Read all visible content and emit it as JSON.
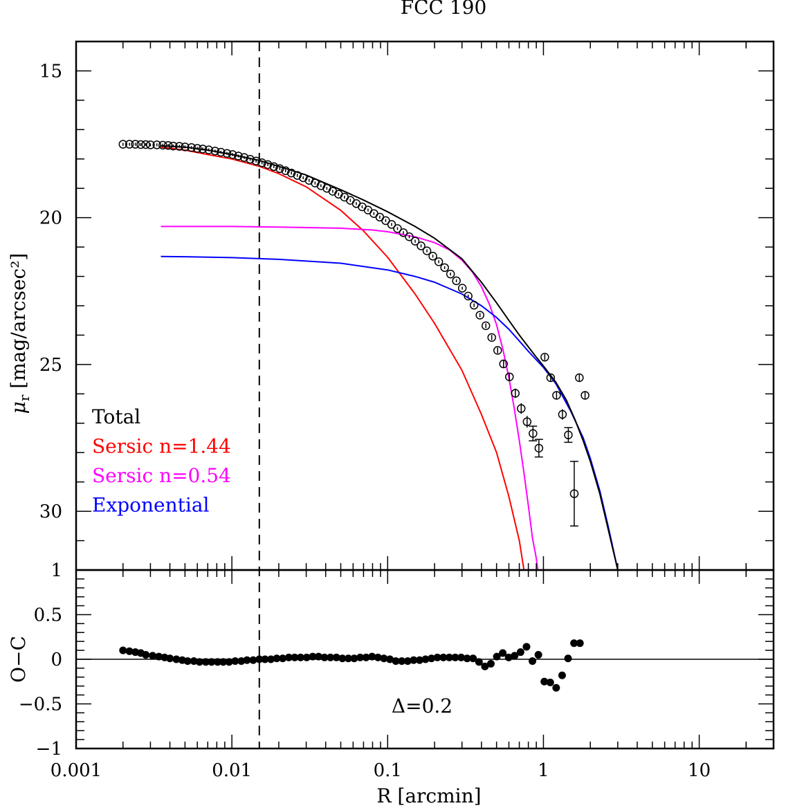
{
  "chart_data": {
    "title": "FCC 190",
    "type": "line",
    "x_axis": {
      "label": "R [arcmin]",
      "scale": "log",
      "range": [
        0.001,
        30
      ],
      "tick_values": [
        0.001,
        0.01,
        0.1,
        1,
        10
      ],
      "tick_labels": [
        "0.001",
        "0.01",
        "0.1",
        "1",
        "10"
      ]
    },
    "top_panel": {
      "ylabel": "μr [mag/arcsec²]",
      "ylabel_main": "μ",
      "ylabel_sub": "r",
      "ylabel_rest": " [mag/arcsec²]",
      "y_range": [
        14,
        32
      ],
      "inverted": true,
      "tick_values": [
        15,
        20,
        25,
        30
      ],
      "tick_labels": [
        "15",
        "20",
        "25",
        "30"
      ],
      "series": [
        {
          "name": "Total",
          "color": "#000000",
          "x": [
            0.0035,
            0.005,
            0.007,
            0.01,
            0.015,
            0.02,
            0.03,
            0.05,
            0.07,
            0.1,
            0.15,
            0.2,
            0.3,
            0.4,
            0.5,
            0.6,
            0.7,
            0.8,
            0.9,
            1.0,
            1.2,
            1.4,
            1.6,
            1.8,
            2.0,
            2.3,
            2.6,
            3.0
          ],
          "y": [
            17.55,
            17.6,
            17.7,
            17.85,
            18.05,
            18.25,
            18.55,
            19.05,
            19.4,
            19.8,
            20.3,
            20.7,
            21.4,
            22.2,
            22.9,
            23.5,
            24.0,
            24.4,
            24.75,
            25.05,
            25.6,
            26.2,
            26.9,
            27.6,
            28.3,
            29.4,
            30.6,
            32.0
          ]
        },
        {
          "name": "Sersic n=1.44",
          "color": "#ff0000",
          "x": [
            0.0035,
            0.005,
            0.007,
            0.01,
            0.015,
            0.02,
            0.03,
            0.05,
            0.07,
            0.1,
            0.15,
            0.2,
            0.3,
            0.4,
            0.5,
            0.6,
            0.7,
            0.75
          ],
          "y": [
            17.6,
            17.7,
            17.85,
            18.0,
            18.25,
            18.5,
            18.95,
            19.75,
            20.45,
            21.35,
            22.6,
            23.6,
            25.2,
            26.7,
            28.0,
            29.5,
            31.0,
            32.0
          ]
        },
        {
          "name": "Sersic n=0.54",
          "color": "#ff00ff",
          "x": [
            0.0035,
            0.005,
            0.01,
            0.02,
            0.05,
            0.08,
            0.1,
            0.15,
            0.2,
            0.25,
            0.3,
            0.35,
            0.4,
            0.45,
            0.5,
            0.55,
            0.6,
            0.65,
            0.7,
            0.75,
            0.8,
            0.85,
            0.9,
            0.92
          ],
          "y": [
            20.3,
            20.3,
            20.3,
            20.32,
            20.36,
            20.42,
            20.48,
            20.65,
            20.85,
            21.1,
            21.45,
            21.85,
            22.35,
            22.95,
            23.65,
            24.5,
            25.45,
            26.5,
            27.6,
            28.7,
            29.8,
            30.9,
            31.6,
            32.0
          ]
        },
        {
          "name": "Exponential",
          "color": "#0000ff",
          "x": [
            0.0035,
            0.005,
            0.01,
            0.02,
            0.05,
            0.1,
            0.15,
            0.2,
            0.3,
            0.4,
            0.5,
            0.6,
            0.7,
            0.8,
            1.0,
            1.2,
            1.5,
            1.8,
            2.0,
            2.3,
            2.6,
            3.0
          ],
          "y": [
            21.32,
            21.33,
            21.36,
            21.42,
            21.55,
            21.78,
            22.0,
            22.2,
            22.6,
            23.0,
            23.4,
            23.8,
            24.2,
            24.55,
            25.1,
            25.65,
            26.6,
            27.5,
            28.2,
            29.3,
            30.5,
            32.0
          ]
        }
      ],
      "points": {
        "x": [
          0.002,
          0.0022,
          0.0024,
          0.0026,
          0.0028,
          0.003,
          0.0033,
          0.0036,
          0.0039,
          0.0042,
          0.0046,
          0.005,
          0.0055,
          0.006,
          0.0065,
          0.0071,
          0.0078,
          0.0085,
          0.0093,
          0.0101,
          0.011,
          0.012,
          0.0131,
          0.0143,
          0.0156,
          0.017,
          0.0186,
          0.0203,
          0.0221,
          0.0241,
          0.0263,
          0.0287,
          0.0313,
          0.0342,
          0.0373,
          0.0407,
          0.0444,
          0.0484,
          0.0528,
          0.0576,
          0.0629,
          0.0686,
          0.0748,
          0.0816,
          0.089,
          0.0971,
          0.106,
          0.1156,
          0.1261,
          0.1376,
          0.1501,
          0.1638,
          0.1787,
          0.195,
          0.2127,
          0.2321,
          0.2532,
          0.2762,
          0.3013,
          0.3287,
          0.3586,
          0.3913,
          0.4269,
          0.4657,
          0.5081,
          0.5543,
          0.6047,
          0.6598,
          0.7198,
          0.7853,
          0.8568,
          0.9348,
          1.0198,
          1.1126,
          1.2138,
          1.3243,
          1.4448,
          1.5763,
          1.7,
          1.85
        ],
        "y": [
          17.5,
          17.5,
          17.5,
          17.51,
          17.51,
          17.52,
          17.52,
          17.53,
          17.54,
          17.56,
          17.57,
          17.59,
          17.61,
          17.64,
          17.66,
          17.69,
          17.73,
          17.77,
          17.81,
          17.85,
          17.9,
          17.95,
          18.01,
          18.07,
          18.13,
          18.19,
          18.26,
          18.33,
          18.4,
          18.48,
          18.56,
          18.64,
          18.73,
          18.82,
          18.91,
          19.0,
          19.1,
          19.2,
          19.3,
          19.41,
          19.52,
          19.63,
          19.74,
          19.86,
          19.98,
          20.1,
          20.23,
          20.37,
          20.51,
          20.65,
          20.8,
          20.96,
          21.13,
          21.31,
          21.5,
          21.7,
          21.92,
          22.15,
          22.4,
          22.67,
          22.98,
          23.32,
          23.68,
          24.08,
          24.52,
          24.98,
          25.42,
          25.98,
          26.5,
          26.95,
          27.35,
          27.85,
          24.75,
          25.45,
          26.05,
          26.7,
          27.4,
          29.4,
          25.45,
          26.05
        ],
        "errors": [
          0.05,
          0.05,
          0.05,
          0.05,
          0.05,
          0.05,
          0.05,
          0.05,
          0.05,
          0.05,
          0.05,
          0.05,
          0.05,
          0.05,
          0.05,
          0.05,
          0.05,
          0.05,
          0.05,
          0.05,
          0.05,
          0.05,
          0.05,
          0.05,
          0.05,
          0.05,
          0.05,
          0.05,
          0.05,
          0.05,
          0.05,
          0.05,
          0.05,
          0.05,
          0.05,
          0.05,
          0.05,
          0.05,
          0.05,
          0.05,
          0.05,
          0.05,
          0.05,
          0.05,
          0.05,
          0.05,
          0.05,
          0.05,
          0.05,
          0.05,
          0.05,
          0.05,
          0.05,
          0.05,
          0.05,
          0.05,
          0.05,
          0.05,
          0.05,
          0.05,
          0.06,
          0.07,
          0.08,
          0.09,
          0.1,
          0.12,
          0.14,
          0.16,
          0.18,
          0.2,
          0.25,
          0.3,
          0.1,
          0.12,
          0.14,
          0.18,
          0.25,
          1.1,
          0.12,
          0.14
        ]
      }
    },
    "bottom_panel": {
      "ylabel": "O−C",
      "y_range": [
        -1,
        1
      ],
      "tick_values": [
        1,
        0.5,
        0,
        -0.5,
        -1
      ],
      "tick_labels": [
        "1",
        "0.5",
        "0",
        "−0.5",
        "−1"
      ],
      "reference_line": 0,
      "annotation": "Δ=0.2",
      "residuals": {
        "x": [
          0.002,
          0.0022,
          0.0024,
          0.0026,
          0.0028,
          0.0031,
          0.0034,
          0.0037,
          0.004,
          0.0044,
          0.0048,
          0.0052,
          0.0057,
          0.0062,
          0.0068,
          0.0074,
          0.0081,
          0.0088,
          0.0096,
          0.0105,
          0.0115,
          0.0125,
          0.0137,
          0.015,
          0.0163,
          0.0178,
          0.0194,
          0.0212,
          0.0232,
          0.0253,
          0.0276,
          0.0302,
          0.033,
          0.036,
          0.0393,
          0.0429,
          0.0469,
          0.0512,
          0.0559,
          0.061,
          0.0666,
          0.0727,
          0.0794,
          0.0867,
          0.0946,
          0.1033,
          0.1128,
          0.1232,
          0.1345,
          0.1468,
          0.1603,
          0.175,
          0.1911,
          0.2086,
          0.2278,
          0.2487,
          0.2715,
          0.2964,
          0.3236,
          0.3533,
          0.3857,
          0.4211,
          0.4598,
          0.502,
          0.548,
          0.5983,
          0.6532,
          0.7131,
          0.7785,
          0.85,
          0.928,
          1.013,
          1.106,
          1.207,
          1.318,
          1.439,
          1.571,
          1.715
        ],
        "y": [
          0.1,
          0.09,
          0.08,
          0.07,
          0.05,
          0.04,
          0.03,
          0.02,
          0.01,
          0.0,
          -0.01,
          -0.02,
          -0.02,
          -0.03,
          -0.03,
          -0.03,
          -0.03,
          -0.03,
          -0.03,
          -0.02,
          -0.02,
          -0.01,
          -0.01,
          0.0,
          0.0,
          0.0,
          0.01,
          0.01,
          0.02,
          0.02,
          0.02,
          0.02,
          0.03,
          0.03,
          0.02,
          0.02,
          0.02,
          0.01,
          0.01,
          0.01,
          0.02,
          0.02,
          0.03,
          0.02,
          0.01,
          0.0,
          -0.02,
          -0.02,
          -0.02,
          -0.01,
          -0.01,
          0.0,
          0.01,
          0.02,
          0.02,
          0.02,
          0.02,
          0.02,
          0.01,
          0.01,
          -0.03,
          -0.08,
          -0.05,
          0.03,
          0.07,
          0.02,
          0.04,
          0.08,
          0.14,
          -0.02,
          0.05,
          -0.25,
          -0.26,
          -0.32,
          -0.18,
          0.01,
          0.18,
          0.18
        ]
      }
    },
    "vertical_marker_x": 0.015,
    "legend": [
      {
        "label": "Total",
        "color": "#000000"
      },
      {
        "label": "Sersic n=1.44",
        "color": "#ff0000"
      },
      {
        "label": "Sersic n=0.54",
        "color": "#ff00ff"
      },
      {
        "label": "Exponential",
        "color": "#0000ff"
      }
    ]
  }
}
